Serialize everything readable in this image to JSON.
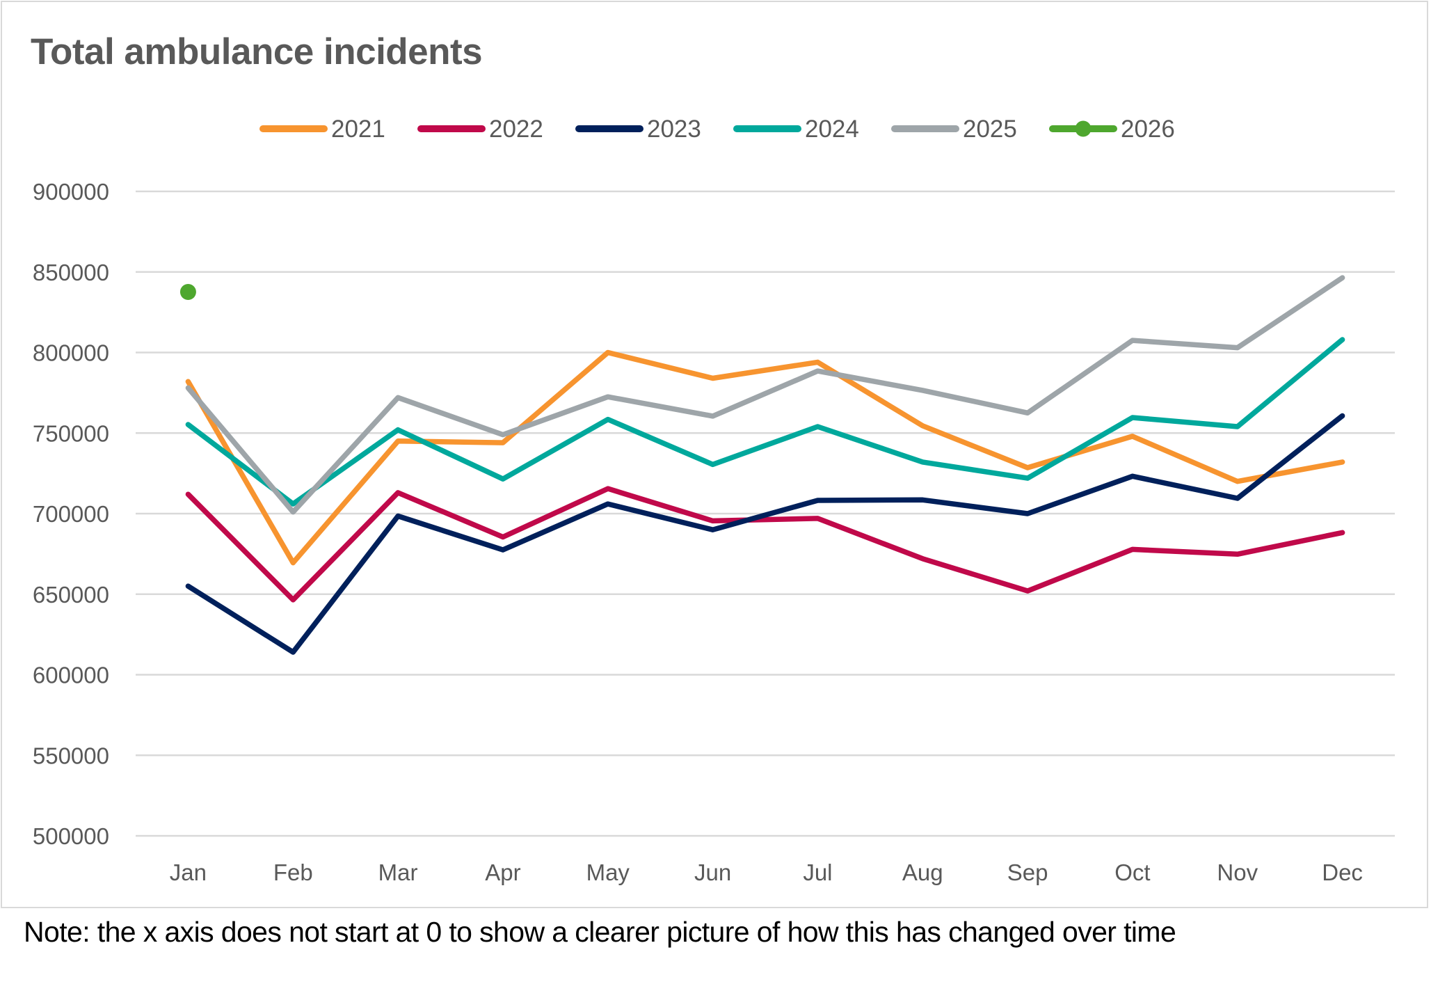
{
  "chart_data": {
    "type": "line",
    "title": "Total ambulance incidents",
    "xlabel": "",
    "ylabel": "",
    "categories": [
      "Jan",
      "Feb",
      "Mar",
      "Apr",
      "May",
      "Jun",
      "Jul",
      "Aug",
      "Sep",
      "Oct",
      "Nov",
      "Dec"
    ],
    "ylim": [
      500000,
      900000
    ],
    "yticks": [
      500000,
      550000,
      600000,
      650000,
      700000,
      750000,
      800000,
      850000,
      900000
    ],
    "ytick_labels": [
      "500000",
      "550000",
      "600000",
      "650000",
      "700000",
      "750000",
      "800000",
      "850000",
      "900000"
    ],
    "grid": true,
    "legend_position": "top",
    "series": [
      {
        "name": "2021",
        "color": "#F7942F",
        "marker": false,
        "values": [
          782000,
          669500,
          745000,
          744000,
          800000,
          784000,
          794000,
          754500,
          728500,
          748000,
          720000,
          732000
        ]
      },
      {
        "name": "2022",
        "color": "#C0094A",
        "marker": false,
        "values": [
          712000,
          646500,
          713000,
          685500,
          715500,
          695500,
          697000,
          672000,
          652000,
          677800,
          674800,
          688200
        ]
      },
      {
        "name": "2023",
        "color": "#00205B",
        "marker": false,
        "values": [
          655000,
          614000,
          698500,
          677500,
          706000,
          690000,
          708200,
          708500,
          700000,
          723200,
          709500,
          760700
        ]
      },
      {
        "name": "2024",
        "color": "#00A89C",
        "marker": false,
        "values": [
          755300,
          706000,
          752000,
          721500,
          758500,
          730500,
          754000,
          732000,
          722000,
          759600,
          754000,
          808000
        ]
      },
      {
        "name": "2025",
        "color": "#9EA5A9",
        "marker": false,
        "values": [
          778000,
          701000,
          772000,
          749000,
          772500,
          760500,
          788500,
          776500,
          762500,
          807500,
          803000,
          846400
        ]
      },
      {
        "name": "2026",
        "color": "#4EA72E",
        "marker": true,
        "values": [
          837600,
          null,
          null,
          null,
          null,
          null,
          null,
          null,
          null,
          null,
          null,
          null
        ]
      }
    ]
  },
  "note": "Note: the x axis does not start at 0 to show a clearer picture of how this has changed over time"
}
